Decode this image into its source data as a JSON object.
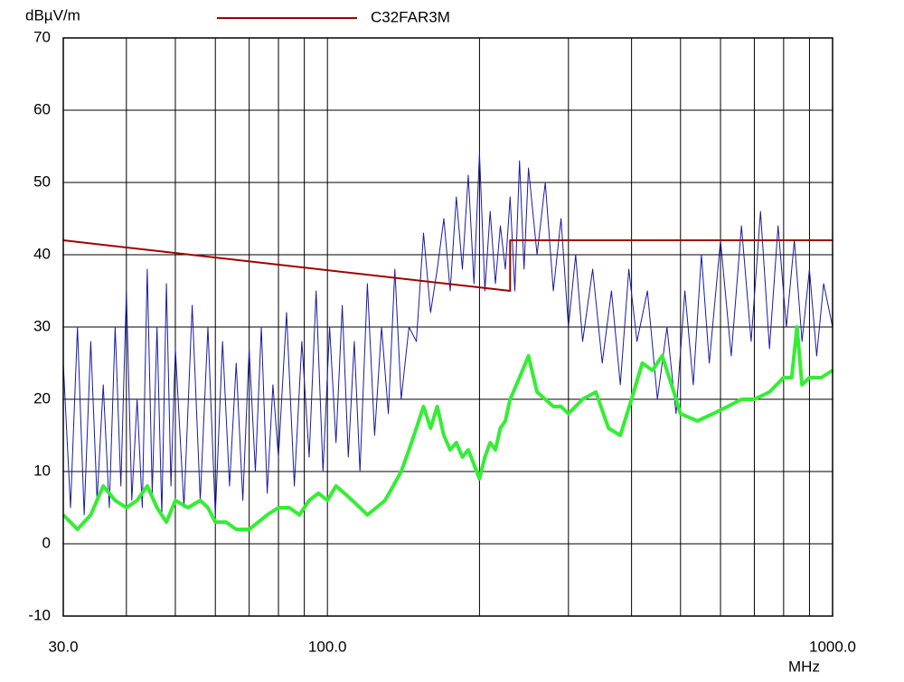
{
  "chart_data": {
    "type": "line",
    "y_unit": "dBµV/m",
    "x_unit": "MHz",
    "xlog": true,
    "grid": true,
    "xlim": [
      30,
      1000
    ],
    "ylim": [
      -10,
      70
    ],
    "xticks": [
      {
        "value": 30,
        "label": "30.0"
      },
      {
        "value": 100,
        "label": "100.0"
      },
      {
        "value": 1000,
        "label": "1000.0"
      }
    ],
    "xgrid_minor": [
      40,
      50,
      60,
      70,
      80,
      90,
      200,
      300,
      400,
      500,
      600,
      700,
      800,
      900
    ],
    "yticks": [
      -10,
      0,
      10,
      20,
      30,
      40,
      50,
      60,
      70
    ],
    "series": [
      {
        "color": "#1a1aa0",
        "width": 1,
        "x": [
          30,
          31,
          32,
          33,
          34,
          35,
          36,
          37,
          38,
          39,
          40,
          41,
          42,
          43,
          44,
          45,
          46,
          47,
          48,
          49,
          50,
          52,
          54,
          56,
          58,
          60,
          62,
          64,
          66,
          68,
          70,
          72,
          74,
          76,
          78,
          80,
          83,
          86,
          89,
          92,
          95,
          98,
          101,
          104,
          107,
          110,
          113,
          116,
          120,
          124,
          128,
          132,
          136,
          140,
          145,
          150,
          155,
          160,
          165,
          170,
          175,
          180,
          185,
          190,
          195,
          200,
          205,
          210,
          215,
          220,
          225,
          230,
          235,
          240,
          245,
          250,
          260,
          270,
          280,
          290,
          300,
          310,
          320,
          335,
          350,
          365,
          380,
          395,
          410,
          430,
          450,
          470,
          490,
          510,
          530,
          550,
          570,
          600,
          630,
          660,
          690,
          720,
          750,
          780,
          810,
          840,
          870,
          900,
          930,
          960,
          1000
        ],
        "values": [
          25,
          5,
          30,
          4,
          28,
          6,
          22,
          5,
          30,
          8,
          35,
          6,
          20,
          5,
          38,
          7,
          30,
          4,
          36,
          8,
          27,
          5,
          33,
          6,
          30,
          4,
          28,
          8,
          25,
          6,
          27,
          10,
          30,
          7,
          22,
          12,
          32,
          8,
          28,
          12,
          35,
          10,
          30,
          14,
          33,
          12,
          28,
          10,
          36,
          15,
          30,
          18,
          38,
          20,
          30,
          28,
          43,
          32,
          38,
          45,
          35,
          48,
          38,
          51,
          36,
          54,
          35,
          46,
          36,
          44,
          38,
          48,
          35,
          53,
          38,
          52,
          40,
          50,
          35,
          45,
          30,
          40,
          28,
          38,
          25,
          35,
          22,
          38,
          28,
          35,
          20,
          30,
          18,
          35,
          22,
          40,
          25,
          42,
          26,
          44,
          28,
          46,
          27,
          44,
          30,
          42,
          28,
          38,
          26,
          36,
          30
        ]
      },
      {
        "color": "#33ee33",
        "width": 4,
        "x": [
          30,
          32,
          34,
          36,
          38,
          40,
          42,
          44,
          46,
          48,
          50,
          53,
          56,
          58,
          60,
          63,
          66,
          70,
          73,
          76,
          80,
          84,
          88,
          92,
          96,
          100,
          104,
          108,
          112,
          116,
          120,
          125,
          130,
          135,
          140,
          145,
          150,
          155,
          160,
          165,
          170,
          175,
          180,
          185,
          190,
          195,
          200,
          205,
          210,
          215,
          220,
          225,
          230,
          240,
          250,
          260,
          270,
          280,
          290,
          300,
          320,
          340,
          360,
          380,
          400,
          420,
          440,
          460,
          480,
          500,
          540,
          580,
          620,
          660,
          700,
          750,
          800,
          830,
          850,
          870,
          900,
          950,
          1000
        ],
        "values": [
          4,
          2,
          4,
          8,
          6,
          5,
          6,
          8,
          5,
          3,
          6,
          5,
          6,
          5,
          3,
          3,
          2,
          2,
          3,
          4,
          5,
          5,
          4,
          6,
          7,
          6,
          8,
          7,
          6,
          5,
          4,
          5,
          6,
          8,
          10,
          13,
          16,
          19,
          16,
          19,
          15,
          13,
          14,
          12,
          13,
          11,
          9,
          12,
          14,
          13,
          16,
          17,
          20,
          23,
          26,
          21,
          20,
          19,
          19,
          18,
          20,
          21,
          16,
          15,
          20,
          25,
          24,
          26,
          22,
          18,
          17,
          18,
          19,
          20,
          20,
          21,
          23,
          23,
          30,
          22,
          23,
          23,
          24
        ]
      },
      {
        "name": "C32FAR3M",
        "color": "#a00000",
        "width": 2,
        "x": [
          30,
          230,
          230,
          1000
        ],
        "values": [
          42,
          35,
          42,
          42
        ]
      }
    ]
  }
}
